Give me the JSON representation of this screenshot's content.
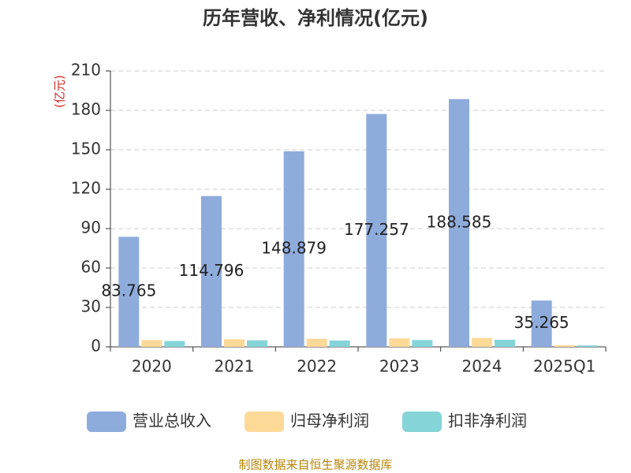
{
  "chart_data": {
    "type": "bar",
    "title": "历年营收、净利情况(亿元)",
    "y_label": "(亿元)",
    "categories": [
      "2020",
      "2021",
      "2022",
      "2023",
      "2024",
      "2025Q1"
    ],
    "series": [
      {
        "name": "营业总收入",
        "color": "#8eacdb",
        "values": [
          83.765,
          114.796,
          148.879,
          177.257,
          188.585,
          35.265
        ],
        "show_labels": true
      },
      {
        "name": "归母净利润",
        "color": "#fdd998",
        "values": [
          5.2,
          5.8,
          6.2,
          6.5,
          6.8,
          1.3
        ]
      },
      {
        "name": "扣非净利润",
        "color": "#84d4d8",
        "values": [
          4.5,
          5.0,
          4.8,
          5.2,
          5.4,
          1.1
        ]
      }
    ],
    "ylim": [
      0,
      210
    ],
    "yticks": [
      0,
      30,
      60,
      90,
      120,
      150,
      180,
      210
    ],
    "grid": true,
    "source": "制图数据来自恒生聚源数据库"
  }
}
